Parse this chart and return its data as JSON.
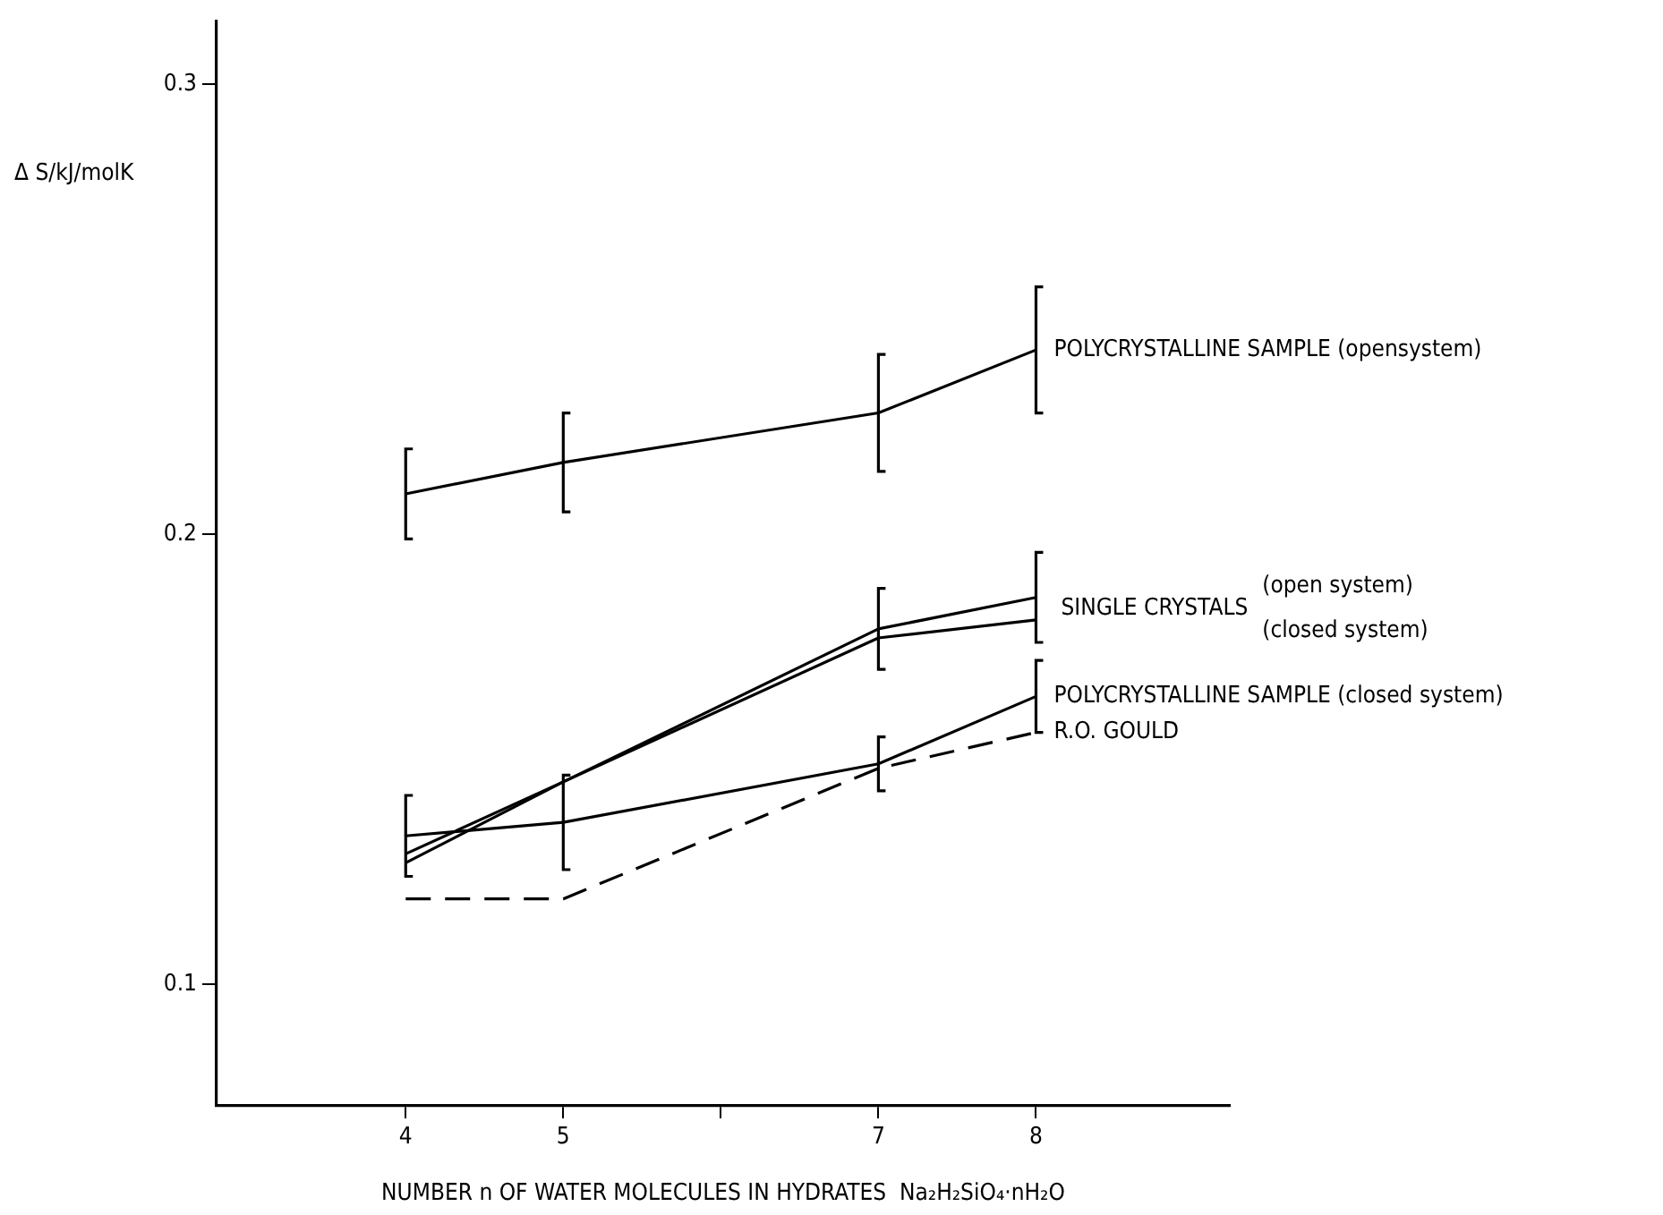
{
  "chart_data": {
    "type": "line",
    "xlabel": "NUMBER n OF WATER MOLECULES IN HYDRATES  Na₂H₂SiO₄·nH₂O",
    "ylabel": "Δ S/kJ/molK",
    "x": [
      4,
      5,
      7,
      8
    ],
    "series": [
      {
        "name": "POLYCRYSTALLINE SAMPLE (opensystem)",
        "color": "#000000",
        "values": [
          0.209,
          0.216,
          0.227,
          0.241
        ],
        "errors": [
          0.01,
          0.011,
          0.013,
          0.014
        ]
      },
      {
        "name": "(open system)",
        "color": "#000000",
        "values": [
          0.129,
          0.145,
          0.179,
          0.186
        ],
        "errors": [
          null,
          null,
          0.009,
          0.01
        ]
      },
      {
        "name": "(closed system)",
        "color": "#000000",
        "values": [
          0.127,
          0.145,
          0.177,
          0.181
        ]
      },
      {
        "name": "POLYCRYSTALLINE SAMPLE (closed system)",
        "color": "#000000",
        "values": [
          0.133,
          0.136,
          0.149,
          0.164
        ],
        "errors": [
          0.009,
          0.0105,
          0.006,
          0.008
        ]
      },
      {
        "name": "R.O. GOULD",
        "color": "#000000",
        "values": [
          0.119,
          0.119,
          0.148,
          0.156
        ],
        "line_style": "dashed"
      }
    ],
    "annotations": [
      {
        "text": "SINGLE CRYSTALS",
        "x": 8,
        "y": 0.1835
      }
    ],
    "xlim": [
      2.8,
      9.23
    ],
    "xticks": [
      4,
      5,
      {
        "value": 6,
        "label": null
      },
      7,
      8
    ],
    "ylim": [
      0.073,
      0.314
    ],
    "yticks": [
      0.1,
      0.2,
      0.3
    ],
    "grid": false,
    "legend": false,
    "marker": "none",
    "line_style": "solid"
  }
}
